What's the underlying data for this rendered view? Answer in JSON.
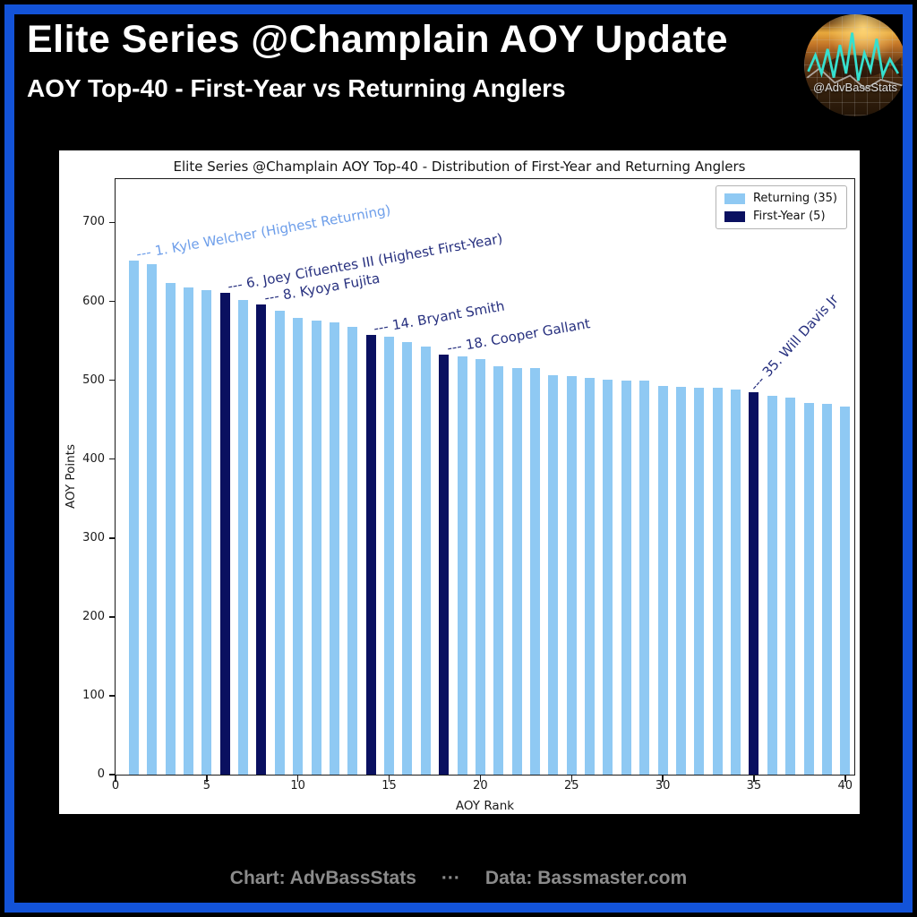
{
  "header": {
    "title": "Elite Series @Champlain AOY Update",
    "subtitle": "AOY Top-40 - First-Year vs Returning Anglers",
    "logo_handle": "@AdvBassStats"
  },
  "footer": {
    "chart_credit": "Chart: AdvBassStats",
    "separator": "···",
    "data_credit": "Data: Bassmaster.com"
  },
  "colors": {
    "frame_blue": "#1353d8",
    "returning": "#8fc9f3",
    "first_year": "#0a1060",
    "annotation_returning": "#6d9eea",
    "annotation_first_year": "#27307f",
    "footer_text": "#8b8b8b",
    "logo_teal": "#36e0cf"
  },
  "chart_data": {
    "type": "bar",
    "title": "Elite Series @Champlain AOY Top-40 - Distribution of First-Year and Returning Anglers",
    "xlabel": "AOY Rank",
    "ylabel": "AOY Points",
    "ylim": [
      0,
      755
    ],
    "xlim": [
      0,
      41
    ],
    "grid": false,
    "x_ticks": [
      0,
      5,
      10,
      15,
      20,
      25,
      30,
      35,
      40
    ],
    "y_ticks": [
      0,
      100,
      200,
      300,
      400,
      500,
      600,
      700
    ],
    "rank_start": 1,
    "values": [
      652,
      647,
      623,
      618,
      614,
      611,
      602,
      596,
      588,
      579,
      576,
      573,
      568,
      557,
      555,
      548,
      543,
      532,
      530,
      527,
      518,
      516,
      515,
      506,
      505,
      503,
      501,
      500,
      499,
      493,
      492,
      491,
      490,
      488,
      485,
      480,
      478,
      471,
      470,
      467
    ],
    "first_year_ranks": [
      6,
      8,
      14,
      18,
      35
    ],
    "legend": {
      "position": "upper right",
      "entries": [
        {
          "label": "Returning (35)",
          "color": "#8fc9f3"
        },
        {
          "label": "First-Year (5)",
          "color": "#0a1060"
        }
      ]
    },
    "annotations": [
      {
        "rank": 1,
        "prefix": "---",
        "label": "1. Kyle Welcher (Highest Returning)",
        "category": "returning",
        "rotation_deg": -10
      },
      {
        "rank": 6,
        "prefix": "---",
        "label": "6. Joey Cifuentes III (Highest First-Year)",
        "category": "first_year",
        "rotation_deg": -10
      },
      {
        "rank": 8,
        "prefix": "---",
        "label": "8. Kyoya Fujita",
        "category": "first_year",
        "rotation_deg": -10
      },
      {
        "rank": 14,
        "prefix": "---",
        "label": "14. Bryant Smith",
        "category": "first_year",
        "rotation_deg": -10
      },
      {
        "rank": 18,
        "prefix": "---",
        "label": "18. Cooper Gallant",
        "category": "first_year",
        "rotation_deg": -10
      },
      {
        "rank": 35,
        "prefix": "---",
        "label": "35. Will Davis Jr",
        "category": "first_year",
        "rotation_deg": -48
      }
    ]
  }
}
